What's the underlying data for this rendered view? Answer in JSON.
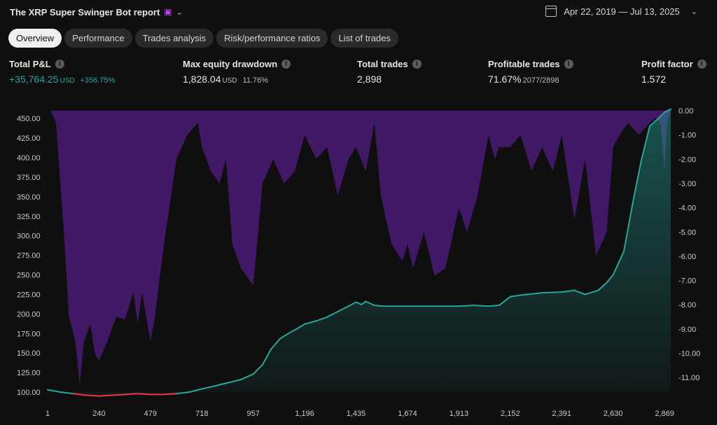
{
  "header": {
    "title": "The XRP Super Swinger Bot report",
    "date_range": "Apr 22, 2019 — Jul 13, 2025"
  },
  "tabs": [
    "Overview",
    "Performance",
    "Trades analysis",
    "Risk/performance ratios",
    "List of trades"
  ],
  "active_tab": "Overview",
  "metrics": {
    "total_pnl": {
      "label": "Total P&L",
      "value": "+35,764.25",
      "unit": "USD",
      "pct": "+356.75%"
    },
    "max_drawdown": {
      "label": "Max equity drawdown",
      "value": "1,828.04",
      "unit": "USD",
      "pct": "11.76%"
    },
    "total_trades": {
      "label": "Total trades",
      "value": "2,898"
    },
    "profitable": {
      "label": "Profitable trades",
      "value": "71.67%",
      "sub": "2077/2898"
    },
    "profit_factor": {
      "label": "Profit factor",
      "value": "1.572"
    }
  },
  "colors": {
    "equity_up": "#26a69a",
    "equity_down": "#f23645",
    "drawdown": "#4a1a74",
    "background": "#0f0f0f"
  },
  "chart_data": {
    "type": "area",
    "x_ticks": [
      "1",
      "240",
      "479",
      "718",
      "957",
      "1,196",
      "1,435",
      "1,674",
      "1,913",
      "2,152",
      "2,391",
      "2,630",
      "2,869"
    ],
    "y_left_ticks": [
      "450.00",
      "425.00",
      "400.00",
      "375.00",
      "350.00",
      "325.00",
      "300.00",
      "275.00",
      "250.00",
      "225.00",
      "200.00",
      "175.00",
      "150.00",
      "125.00",
      "100.00"
    ],
    "y_right_ticks": [
      "0.00",
      "-1.00",
      "-2.00",
      "-3.00",
      "-4.00",
      "-5.00",
      "-6.00",
      "-7.00",
      "-8.00",
      "-9.00",
      "-10.00",
      "-11.00"
    ],
    "xlim": [
      1,
      2898
    ],
    "ylim_left": [
      100,
      460
    ],
    "ylim_right": [
      -11.6,
      0
    ],
    "equity": {
      "x": [
        1,
        60,
        120,
        180,
        240,
        300,
        360,
        420,
        479,
        540,
        600,
        660,
        718,
        780,
        840,
        900,
        957,
        1000,
        1040,
        1080,
        1120,
        1160,
        1196,
        1250,
        1300,
        1350,
        1400,
        1435,
        1460,
        1480,
        1520,
        1560,
        1600,
        1674,
        1750,
        1800,
        1850,
        1913,
        1980,
        2050,
        2100,
        2152,
        2200,
        2300,
        2391,
        2450,
        2500,
        2560,
        2600,
        2630,
        2680,
        2720,
        2760,
        2800,
        2840,
        2869,
        2898
      ],
      "y": [
        103,
        100,
        98,
        96,
        95,
        96,
        97,
        98,
        97,
        97,
        98,
        100,
        104,
        108,
        112,
        116,
        123,
        135,
        155,
        168,
        175,
        181,
        187,
        191,
        196,
        203,
        210,
        215,
        212,
        216,
        211,
        210,
        210,
        210,
        210,
        210,
        210,
        210,
        211,
        210,
        211,
        222,
        224,
        227,
        228,
        230,
        225,
        230,
        240,
        250,
        280,
        340,
        395,
        440,
        450,
        458,
        462
      ]
    },
    "drawdown": {
      "x": [
        1,
        15,
        40,
        80,
        100,
        130,
        150,
        170,
        200,
        220,
        240,
        279,
        320,
        360,
        400,
        420,
        440,
        479,
        500,
        520,
        550,
        600,
        650,
        700,
        718,
        760,
        800,
        830,
        860,
        900,
        957,
        1000,
        1050,
        1100,
        1150,
        1196,
        1250,
        1300,
        1350,
        1400,
        1435,
        1480,
        1520,
        1550,
        1600,
        1650,
        1674,
        1700,
        1750,
        1800,
        1850,
        1913,
        1950,
        2000,
        2050,
        2080,
        2100,
        2152,
        2200,
        2250,
        2300,
        2350,
        2391,
        2450,
        2500,
        2550,
        2600,
        2630,
        2660,
        2700,
        2750,
        2800,
        2830,
        2850,
        2869,
        2880,
        2898
      ],
      "y": [
        0,
        0,
        -0.5,
        -5.5,
        -8.5,
        -9.5,
        -11.3,
        -9.5,
        -8.8,
        -10,
        -10.3,
        -9.5,
        -8.5,
        -8.6,
        -7.5,
        -8.8,
        -7.5,
        -9.5,
        -8.5,
        -7,
        -5,
        -2,
        -1,
        -0.5,
        -1.5,
        -2.5,
        -3,
        -2,
        -5.5,
        -6.5,
        -7.2,
        -3,
        -2,
        -3,
        -2.5,
        -1,
        -2,
        -1.5,
        -3.5,
        -2,
        -1.5,
        -2.5,
        -0.5,
        -3.5,
        -5.5,
        -6.2,
        -5.5,
        -6.5,
        -5,
        -6.8,
        -6.5,
        -4,
        -5,
        -3.5,
        -1,
        -2,
        -1.5,
        -1.5,
        -1,
        -2.5,
        -1.5,
        -2.5,
        -1,
        -4.5,
        -2,
        -6,
        -5,
        -1.5,
        -1,
        -0.5,
        -1,
        -0.5,
        -0.3,
        -0.5,
        -2.5,
        -0.5,
        0
      ]
    }
  }
}
